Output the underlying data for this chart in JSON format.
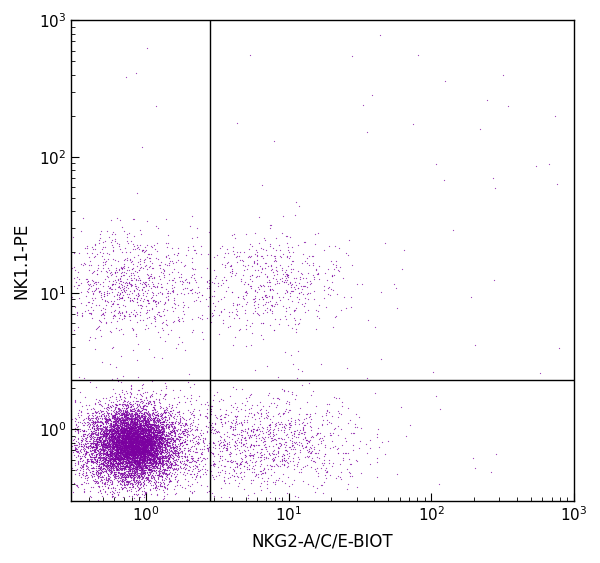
{
  "xlabel": "NKG2-A/C/E-BIOT",
  "ylabel": "NK1.1-PE",
  "dot_color": "#7B00A0",
  "dot_alpha": 0.75,
  "dot_size": 0.8,
  "xlim": [
    0.3,
    1000
  ],
  "ylim": [
    0.3,
    1000
  ],
  "quadrant_x": 2.8,
  "quadrant_y": 2.3,
  "xlabel_fontsize": 12,
  "ylabel_fontsize": 12,
  "tick_fontsize": 11,
  "background_color": "#ffffff",
  "seed": 42
}
